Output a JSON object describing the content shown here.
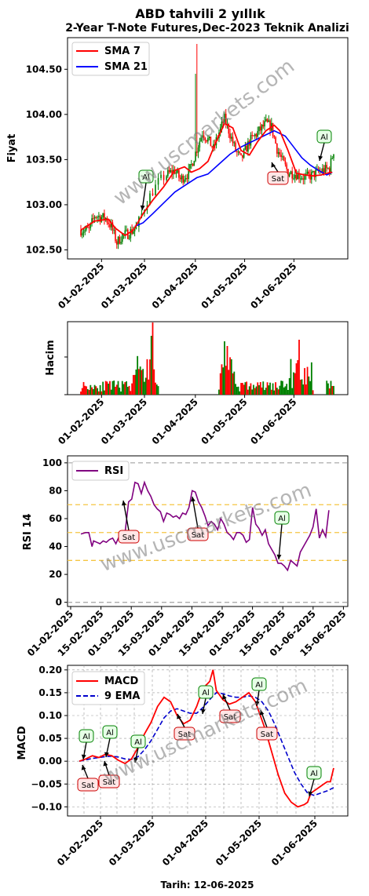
{
  "title": "ABD tahvili 2 yıllık",
  "subtitle": "2-Year T-Note Futures,Dec-2023 Teknik Analizi",
  "watermark": "www.uscmarkets.com",
  "footer": "Tarih: 12-06-2025",
  "colors": {
    "up": "#008000",
    "down": "#ff0000",
    "sma7": "#ff0000",
    "sma21": "#0000ff",
    "rsi": "#800080",
    "macd": "#ff0000",
    "signal": "#0000cc",
    "buy_bg": "#e6ffe6",
    "buy_edge": "#008000",
    "sell_bg": "#ffe6e6",
    "sell_edge": "#cc0000"
  },
  "chart_data": [
    {
      "type": "candlestick",
      "id": "price",
      "ylabel": "Fiyat",
      "ylim": [
        102.4,
        104.85
      ],
      "yticks": [
        "102.50",
        "103.00",
        "103.50",
        "104.00",
        "104.50"
      ],
      "xticks": [
        "01-02-2025",
        "01-03-2025",
        "01-04-2025",
        "01-05-2025",
        "01-06-2025"
      ],
      "legend": [
        {
          "name": "SMA 7"
        },
        {
          "name": "SMA 21"
        }
      ],
      "legend_position": "top-left",
      "sma7": [
        [
          0,
          102.72
        ],
        [
          10,
          102.82
        ],
        [
          20,
          102.84
        ],
        [
          25,
          102.74
        ],
        [
          32,
          102.66
        ],
        [
          38,
          102.72
        ],
        [
          45,
          102.9
        ],
        [
          52,
          103.05
        ],
        [
          60,
          103.2
        ],
        [
          68,
          103.38
        ],
        [
          75,
          103.42
        ],
        [
          80,
          103.36
        ],
        [
          86,
          103.4
        ],
        [
          92,
          103.48
        ],
        [
          98,
          103.7
        ],
        [
          104,
          103.9
        ],
        [
          110,
          103.85
        ],
        [
          116,
          103.6
        ],
        [
          122,
          103.55
        ],
        [
          128,
          103.7
        ],
        [
          134,
          103.82
        ],
        [
          140,
          103.88
        ],
        [
          144,
          103.82
        ],
        [
          150,
          103.6
        ],
        [
          156,
          103.35
        ],
        [
          162,
          103.33
        ],
        [
          168,
          103.32
        ],
        [
          174,
          103.33
        ],
        [
          178,
          103.35
        ],
        [
          182,
          103.36
        ]
      ],
      "sma21": [
        [
          39,
          102.76
        ],
        [
          45,
          102.8
        ],
        [
          52,
          102.9
        ],
        [
          60,
          103.02
        ],
        [
          68,
          103.14
        ],
        [
          76,
          103.22
        ],
        [
          84,
          103.3
        ],
        [
          92,
          103.34
        ],
        [
          100,
          103.45
        ],
        [
          108,
          103.56
        ],
        [
          116,
          103.64
        ],
        [
          124,
          103.7
        ],
        [
          132,
          103.76
        ],
        [
          140,
          103.82
        ],
        [
          148,
          103.76
        ],
        [
          154,
          103.64
        ],
        [
          160,
          103.52
        ],
        [
          166,
          103.44
        ],
        [
          172,
          103.38
        ],
        [
          178,
          103.33
        ],
        [
          182,
          103.36
        ]
      ],
      "annotations": [
        {
          "label": "Al",
          "x": 40,
          "y": 102.7
        },
        {
          "label": "Sat",
          "x": 154,
          "y": 103.38
        },
        {
          "label": "Al",
          "x": 179,
          "y": 103.55
        }
      ]
    },
    {
      "type": "bar",
      "id": "volume",
      "ylabel": "Hacim",
      "xticks": [
        "01-02-2025",
        "01-03-2025",
        "01-04-2025",
        "01-05-2025",
        "01-06-2025"
      ]
    },
    {
      "type": "line",
      "id": "rsi",
      "ylabel": "RSI 14",
      "ylim": [
        -3,
        105
      ],
      "yticks": [
        "0",
        "20",
        "40",
        "60",
        "80",
        "100"
      ],
      "xticks": [
        "01-02-2025",
        "15-02-2025",
        "01-03-2025",
        "15-03-2025",
        "01-04-2025",
        "15-04-2025",
        "01-05-2025",
        "15-05-2025",
        "01-06-2025",
        "15-06-2025"
      ],
      "legend": [
        {
          "name": "RSI"
        }
      ],
      "legend_position": "top-left",
      "reference_lines": [
        0,
        30,
        50,
        70,
        100
      ],
      "series": [
        {
          "name": "RSI",
          "points": [
            [
              0,
              49
            ],
            [
              3,
              50
            ],
            [
              5,
              50
            ],
            [
              6,
              45
            ],
            [
              7,
              40
            ],
            [
              8,
              44
            ],
            [
              10,
              43
            ],
            [
              12,
              42
            ],
            [
              14,
              44
            ],
            [
              16,
              43
            ],
            [
              18,
              45
            ],
            [
              20,
              46
            ],
            [
              22,
              42
            ],
            [
              24,
              47
            ],
            [
              26,
              46
            ],
            [
              28,
              52
            ],
            [
              30,
              72
            ],
            [
              32,
              74
            ],
            [
              34,
              86
            ],
            [
              36,
              85
            ],
            [
              38,
              78
            ],
            [
              40,
              86
            ],
            [
              42,
              80
            ],
            [
              44,
              76
            ],
            [
              46,
              70
            ],
            [
              48,
              67
            ],
            [
              50,
              65
            ],
            [
              52,
              58
            ],
            [
              54,
              64
            ],
            [
              56,
              63
            ],
            [
              58,
              61
            ],
            [
              60,
              62
            ],
            [
              62,
              60
            ],
            [
              64,
              64
            ],
            [
              66,
              63
            ],
            [
              68,
              68
            ],
            [
              70,
              80
            ],
            [
              72,
              79
            ],
            [
              74,
              72
            ],
            [
              76,
              68
            ],
            [
              78,
              62
            ],
            [
              80,
              55
            ],
            [
              82,
              58
            ],
            [
              84,
              56
            ],
            [
              86,
              52
            ],
            [
              88,
              60
            ],
            [
              90,
              56
            ],
            [
              92,
              50
            ],
            [
              94,
              48
            ],
            [
              96,
              45
            ],
            [
              98,
              50
            ],
            [
              100,
              50
            ],
            [
              102,
              48
            ],
            [
              104,
              43
            ],
            [
              106,
              45
            ],
            [
              108,
              68
            ],
            [
              110,
              56
            ],
            [
              112,
              53
            ],
            [
              114,
              48
            ],
            [
              116,
              52
            ],
            [
              118,
              42
            ],
            [
              120,
              38
            ],
            [
              122,
              34
            ],
            [
              124,
              28
            ],
            [
              126,
              28
            ],
            [
              128,
              26
            ],
            [
              130,
              23
            ],
            [
              132,
              30
            ],
            [
              134,
              28
            ],
            [
              136,
              26
            ],
            [
              138,
              36
            ],
            [
              140,
              40
            ],
            [
              142,
              44
            ],
            [
              144,
              48
            ],
            [
              146,
              54
            ],
            [
              148,
              67
            ],
            [
              150,
              46
            ],
            [
              152,
              52
            ],
            [
              154,
              47
            ],
            [
              156,
              66
            ]
          ]
        }
      ],
      "annotations": [
        {
          "label": "Sat",
          "x": 30,
          "y": 74
        },
        {
          "label": "Sat",
          "x": 70,
          "y": 80
        },
        {
          "label": "Al",
          "x": 124,
          "y": 28
        }
      ]
    },
    {
      "type": "line",
      "id": "macd",
      "ylabel": "MACD",
      "xlabel": "Tarih: 12-06-2025",
      "ylim": [
        -0.12,
        0.21
      ],
      "yticks": [
        "−0.10",
        "−0.05",
        "0.00",
        "0.05",
        "0.10",
        "0.15",
        "0.20"
      ],
      "xticks": [
        "01-02-2025",
        "01-03-2025",
        "01-04-2025",
        "01-05-2025",
        "01-06-2025"
      ],
      "legend": [
        {
          "name": "MACD"
        },
        {
          "name": "9 EMA"
        }
      ],
      "legend_position": "top-left",
      "series": [
        {
          "name": "MACD",
          "points": [
            [
              0,
              0.0
            ],
            [
              4,
              0.005
            ],
            [
              8,
              0.012
            ],
            [
              12,
              0.008
            ],
            [
              16,
              0.015
            ],
            [
              20,
              0.012
            ],
            [
              24,
              0.002
            ],
            [
              28,
              -0.005
            ],
            [
              32,
              0.005
            ],
            [
              36,
              0.03
            ],
            [
              40,
              0.06
            ],
            [
              44,
              0.085
            ],
            [
              48,
              0.12
            ],
            [
              52,
              0.14
            ],
            [
              56,
              0.13
            ],
            [
              60,
              0.1
            ],
            [
              64,
              0.082
            ],
            [
              68,
              0.09
            ],
            [
              72,
              0.12
            ],
            [
              76,
              0.16
            ],
            [
              80,
              0.175
            ],
            [
              82,
              0.2
            ],
            [
              84,
              0.155
            ],
            [
              88,
              0.135
            ],
            [
              92,
              0.125
            ],
            [
              96,
              0.13
            ],
            [
              100,
              0.14
            ],
            [
              104,
              0.15
            ],
            [
              108,
              0.13
            ],
            [
              110,
              0.11
            ],
            [
              114,
              0.07
            ],
            [
              118,
              0.02
            ],
            [
              122,
              -0.03
            ],
            [
              126,
              -0.07
            ],
            [
              130,
              -0.09
            ],
            [
              134,
              -0.1
            ],
            [
              138,
              -0.095
            ],
            [
              140,
              -0.09
            ],
            [
              142,
              -0.07
            ],
            [
              146,
              -0.06
            ],
            [
              150,
              -0.05
            ],
            [
              152,
              -0.045
            ],
            [
              154,
              -0.045
            ],
            [
              156,
              -0.015
            ]
          ]
        },
        {
          "name": "9 EMA",
          "points": [
            [
              0,
              0.0
            ],
            [
              4,
              0.003
            ],
            [
              8,
              0.006
            ],
            [
              12,
              0.008
            ],
            [
              16,
              0.01
            ],
            [
              20,
              0.011
            ],
            [
              24,
              0.009
            ],
            [
              28,
              0.005
            ],
            [
              32,
              0.004
            ],
            [
              36,
              0.01
            ],
            [
              40,
              0.025
            ],
            [
              44,
              0.045
            ],
            [
              48,
              0.07
            ],
            [
              52,
              0.095
            ],
            [
              56,
              0.11
            ],
            [
              60,
              0.115
            ],
            [
              64,
              0.11
            ],
            [
              68,
              0.105
            ],
            [
              72,
              0.105
            ],
            [
              76,
              0.118
            ],
            [
              80,
              0.135
            ],
            [
              84,
              0.15
            ],
            [
              88,
              0.148
            ],
            [
              92,
              0.143
            ],
            [
              96,
              0.14
            ],
            [
              100,
              0.14
            ],
            [
              104,
              0.143
            ],
            [
              108,
              0.14
            ],
            [
              112,
              0.13
            ],
            [
              116,
              0.11
            ],
            [
              120,
              0.08
            ],
            [
              124,
              0.045
            ],
            [
              128,
              0.01
            ],
            [
              132,
              -0.025
            ],
            [
              136,
              -0.05
            ],
            [
              140,
              -0.07
            ],
            [
              144,
              -0.075
            ],
            [
              148,
              -0.07
            ],
            [
              152,
              -0.065
            ],
            [
              156,
              -0.058
            ]
          ]
        }
      ],
      "annotations": [
        {
          "label": "Al",
          "x": 1,
          "y": 0.0
        },
        {
          "label": "Sat",
          "x": 1,
          "y": -0.005
        },
        {
          "label": "Al",
          "x": 12,
          "y": 0.01
        },
        {
          "label": "Sat",
          "x": 12,
          "y": 0.0
        },
        {
          "label": "Al",
          "x": 26,
          "y": -0.005
        },
        {
          "label": "Sat",
          "x": 46,
          "y": 0.11
        },
        {
          "label": "Al",
          "x": 64,
          "y": 0.105
        },
        {
          "label": "Sat",
          "x": 72,
          "y": 0.13
        },
        {
          "label": "Al",
          "x": 88,
          "y": 0.13
        },
        {
          "label": "Sat",
          "x": 90,
          "y": 0.13
        },
        {
          "label": "Al",
          "x": 116,
          "y": -0.085
        }
      ]
    }
  ]
}
